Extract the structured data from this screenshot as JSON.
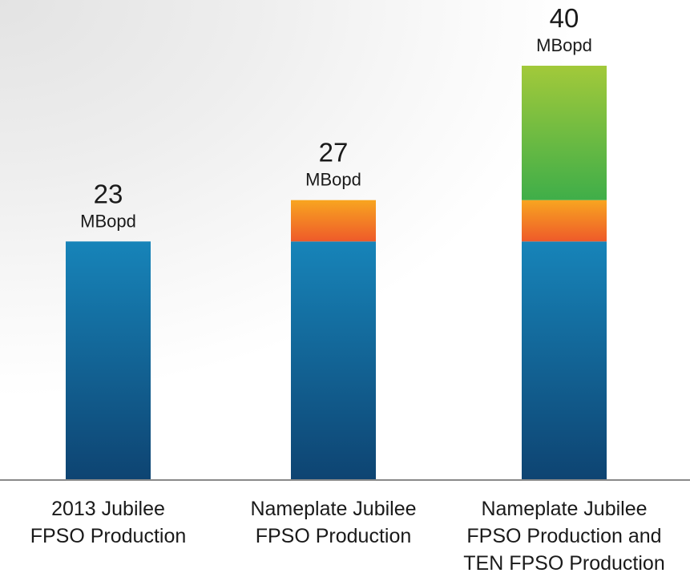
{
  "chart_data": {
    "type": "bar",
    "stacked": true,
    "categories": [
      [
        "2013 Jubilee",
        "FPSO Production"
      ],
      [
        "Nameplate Jubilee",
        "FPSO Production"
      ],
      [
        "Nameplate Jubilee",
        "FPSO Production and",
        "TEN FPSO Production"
      ]
    ],
    "series": [
      {
        "values": [
          23,
          23,
          23
        ],
        "color": "#1576ac"
      },
      {
        "values": [
          0,
          4,
          4
        ],
        "color": "#f06d28"
      },
      {
        "values": [
          0,
          0,
          13
        ],
        "color": "#5bb744"
      }
    ],
    "totals": [
      23,
      27,
      40
    ],
    "total_unit": "MBopd",
    "ylim": [
      0,
      40
    ],
    "grid": false,
    "legend": "none"
  }
}
